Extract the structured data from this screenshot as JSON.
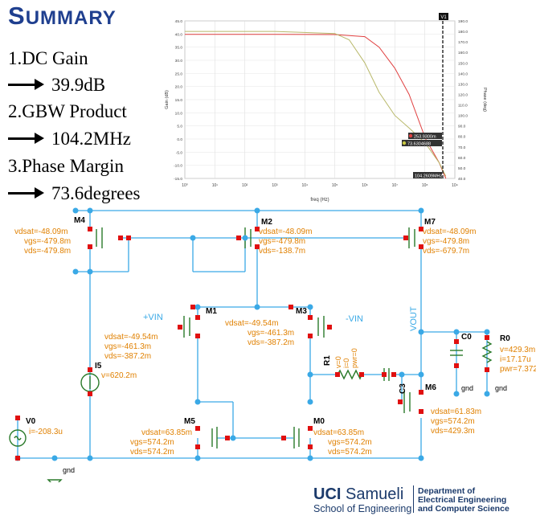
{
  "title": {
    "first": "S",
    "rest": "UMMARY"
  },
  "summary": [
    {
      "label": "1.DC Gain",
      "value": "39.9dB"
    },
    {
      "label": "2.GBW Product",
      "value": "104.2MHz"
    },
    {
      "label": "3.Phase Margin",
      "value": "73.6degrees"
    }
  ],
  "plot": {
    "y_left_label": "Gain (dB)",
    "y_right_label": "Phase (deg)",
    "x_label": "freq (Hz)",
    "y_left_ticks": [
      "45.0",
      "40.0",
      "35.0",
      "30.0",
      "25.0",
      "20.0",
      "15.0",
      "10.0",
      "5.0",
      "0.0",
      "-5.0",
      "-10.0",
      "-15.0"
    ],
    "y_right_ticks": [
      "190.0",
      "180.0",
      "170.0",
      "160.0",
      "150.0",
      "140.0",
      "130.0",
      "120.0",
      "110.0",
      "100.0",
      "90.0",
      "80.0",
      "70.0",
      "60.0",
      "50.0",
      "40.0"
    ],
    "x_ticks": [
      "10⁰",
      "10¹",
      "10²",
      "10³",
      "10⁴",
      "10⁵",
      "10⁶",
      "10⁷",
      "10⁸",
      "10⁹"
    ],
    "marker_label": "V1",
    "marker_freq": "104.2609MHz",
    "marker_val_gain": "253.9300m",
    "marker_val_phase": "73.6304688"
  },
  "chart_data": {
    "type": "line",
    "x_scale": "log",
    "xlabel": "freq (Hz)",
    "ylabel": "Gain (dB)",
    "y2label": "Phase (deg)",
    "xlim": [
      1,
      1000000000
    ],
    "ylim": [
      -15,
      45
    ],
    "y2lim": [
      40,
      190
    ],
    "series": [
      {
        "axis": "left",
        "color": "#e04040",
        "x": [
          1,
          1000,
          100000,
          1000000,
          3000000,
          10000000,
          30000000,
          104260900,
          300000000,
          500000000
        ],
        "y": [
          39.9,
          39.9,
          39.8,
          39.0,
          35.0,
          27.0,
          17.0,
          0.25,
          -9.0,
          -15.0
        ]
      },
      {
        "axis": "right",
        "color": "#b8b86a",
        "x": [
          1,
          1000,
          100000,
          300000,
          1000000,
          3000000,
          10000000,
          30000000,
          104260900,
          300000000,
          500000000
        ],
        "y": [
          180,
          180,
          178,
          172,
          150,
          122,
          100,
          88,
          73.6,
          55,
          42
        ]
      }
    ],
    "grid": true
  },
  "schematic": {
    "M4": [
      "vdsat=-48.09m",
      "vgs=-479.8m",
      "vds=-479.8m"
    ],
    "M2": [
      "vdsat=-48.09m",
      "vgs=-479.8m",
      "vds=-138.7m"
    ],
    "M7": [
      "vdsat=-48.09m",
      "vgs=-479.8m",
      "vds=-679.7m"
    ],
    "M1": [
      "vdsat=-49.54m",
      "vgs=-461.3m",
      "vds=-387.2m"
    ],
    "M3": [
      "vdsat=-49.54m",
      "vgs=-461.3m",
      "vds=-387.2m"
    ],
    "M5": [
      "vdsat=63.85m",
      "vgs=574.2m",
      "vds=574.2m"
    ],
    "M0": [
      "vdsat=63.85m",
      "vgs=574.2m",
      "vds=574.2m"
    ],
    "M6": [
      "vdsat=61.83m",
      "vgs=574.2m",
      "vds=429.3m"
    ],
    "names": {
      "M4": "M4",
      "M2": "M2",
      "M7": "M7",
      "M1": "M1",
      "M3": "M3",
      "M5": "M5",
      "M0": "M0",
      "M6": "M6",
      "I5": "I5",
      "V0": "V0",
      "R1": "R1",
      "C3": "C3",
      "C0": "C0",
      "R0": "R0"
    },
    "I5": "v=620.2m",
    "V0": "i=-208.3u",
    "R0": [
      "v=429.3m",
      "i=17.17u",
      "pwr=7.372"
    ],
    "R1": [
      "v=0",
      "i=0",
      "pwr=0"
    ],
    "vinp": "+VIN",
    "vinn": "-VIN",
    "vout": "VOUT",
    "gnd": "gnd"
  },
  "footer": {
    "uci": "UCI",
    "samueli": " Samueli",
    "school": "School of Engineering",
    "dept1": "Department of",
    "dept2": "Electrical Engineering",
    "dept3": "and Computer Science"
  }
}
